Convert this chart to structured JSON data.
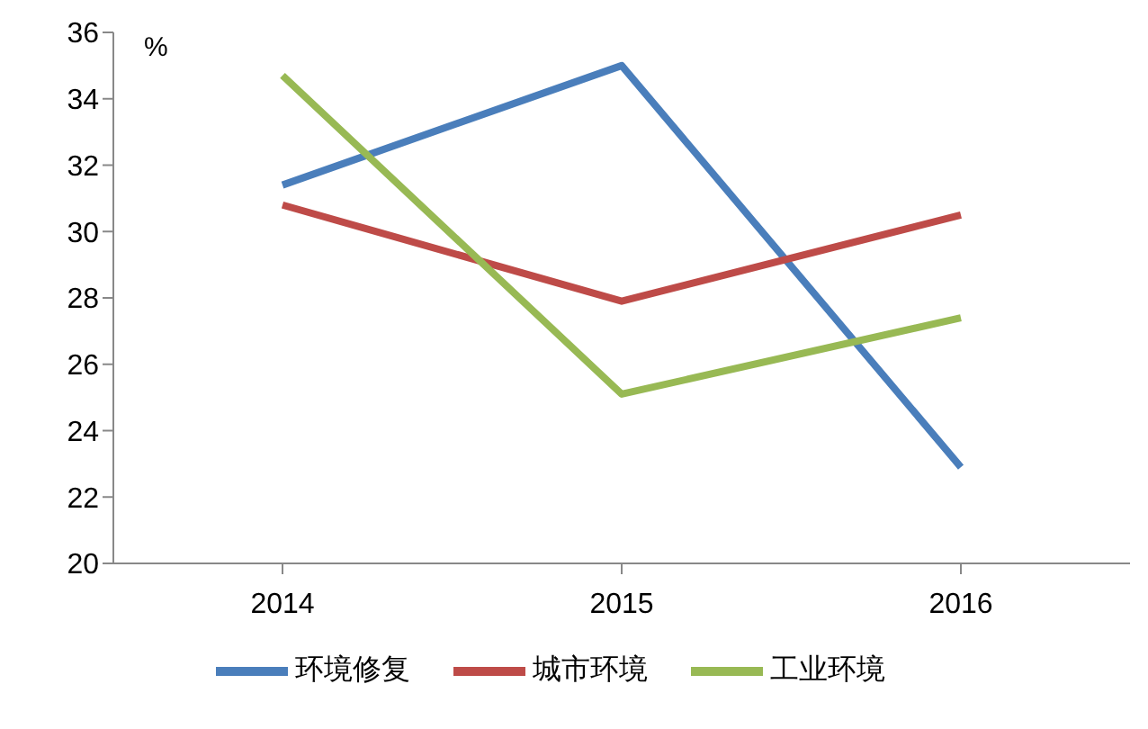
{
  "chart_data": {
    "type": "line",
    "ylabel": "%",
    "categories": [
      "2014",
      "2015",
      "2016"
    ],
    "series": [
      {
        "name": "环境修复",
        "color": "#4a7ebb",
        "values": [
          31.4,
          35.0,
          22.9
        ]
      },
      {
        "name": "城市环境",
        "color": "#be4b48",
        "values": [
          30.8,
          27.9,
          30.5
        ]
      },
      {
        "name": "工业环境",
        "color": "#98b954",
        "values": [
          34.7,
          25.1,
          27.4
        ]
      }
    ],
    "ylim": [
      20,
      36
    ],
    "yticks": [
      20,
      22,
      24,
      26,
      28,
      30,
      32,
      34,
      36
    ],
    "grid": false,
    "legend": "bottom",
    "marker": "none",
    "line_style": "solid"
  }
}
